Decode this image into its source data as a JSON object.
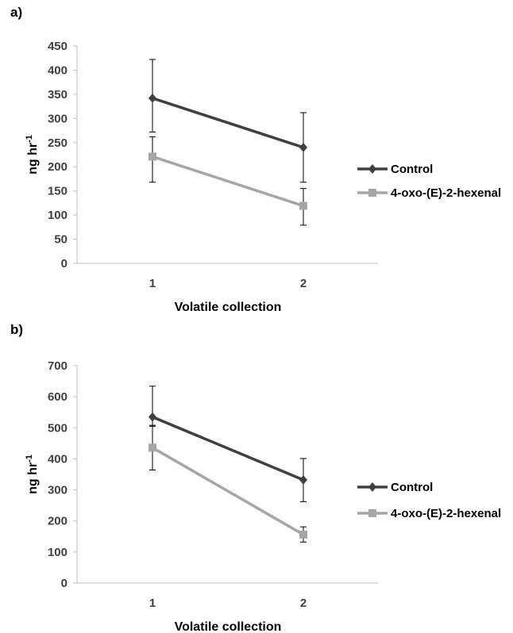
{
  "chart_data": [
    {
      "panel": "a)",
      "type": "line",
      "categories": [
        "1",
        "2"
      ],
      "xlabel": "Volatile collection",
      "ylabel": "ng hr",
      "ylabel_sup": "-1",
      "ylim": [
        0,
        450
      ],
      "yticks": [
        0,
        50,
        100,
        150,
        200,
        250,
        300,
        350,
        400,
        450
      ],
      "grid": false,
      "legend": "right",
      "series": [
        {
          "name": "Control",
          "color": "#404040",
          "marker": "diamond",
          "values": [
            342,
            240
          ],
          "err_low": [
            272,
            168
          ],
          "err_high": [
            422,
            312
          ]
        },
        {
          "name": "4-oxo-(E)-2-hexenal",
          "color": "#a6a6a6",
          "marker": "square",
          "values": [
            221,
            119
          ],
          "err_low": [
            168,
            79
          ],
          "err_high": [
            262,
            155
          ]
        }
      ]
    },
    {
      "panel": "b)",
      "type": "line",
      "categories": [
        "1",
        "2"
      ],
      "xlabel": "Volatile collection",
      "ylabel": "ng hr",
      "ylabel_sup": "-1",
      "ylim": [
        0,
        700
      ],
      "yticks": [
        0,
        100,
        200,
        300,
        400,
        500,
        600,
        700
      ],
      "grid": false,
      "legend": "right",
      "series": [
        {
          "name": "Control",
          "color": "#404040",
          "marker": "diamond",
          "values": [
            535,
            332
          ],
          "err_low": [
            505,
            262
          ],
          "err_high": [
            634,
            401
          ]
        },
        {
          "name": "4-oxo-(E)-2-hexenal",
          "color": "#a6a6a6",
          "marker": "square",
          "values": [
            436,
            156
          ],
          "err_low": [
            364,
            132
          ],
          "err_high": [
            508,
            181
          ]
        }
      ]
    }
  ]
}
